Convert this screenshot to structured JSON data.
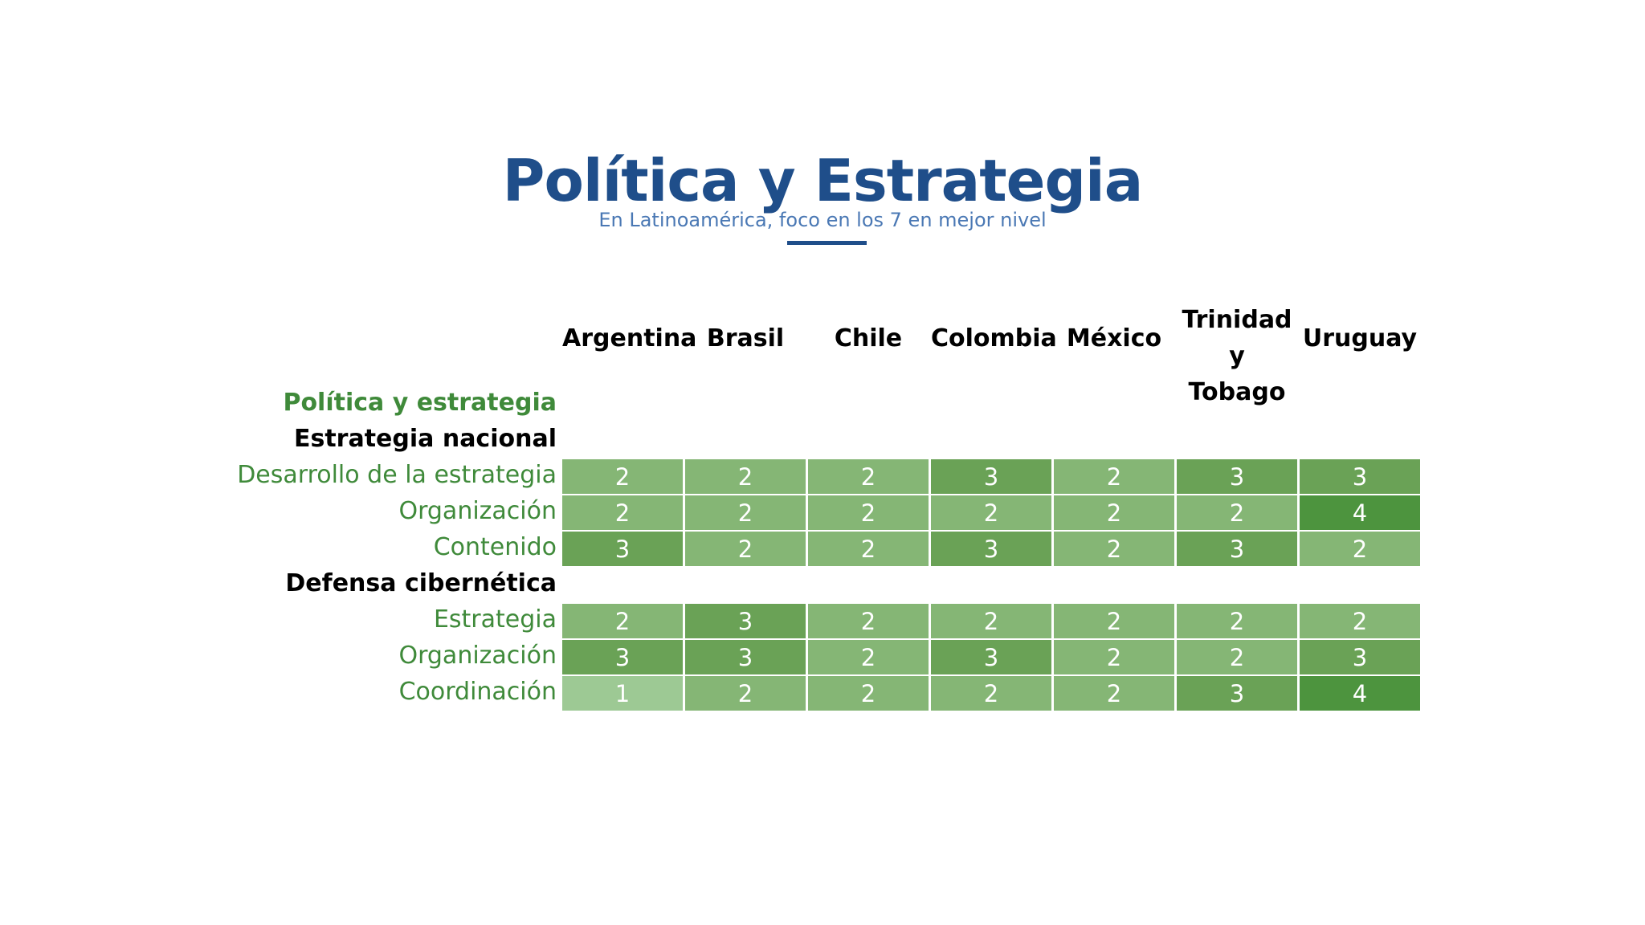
{
  "header": {
    "title": "Política y Estrategia",
    "subtitle": "En Latinoamérica, foco en los 7 en mejor nivel"
  },
  "colors": {
    "title": "#1f4e8a",
    "subtitle": "#4a78b4",
    "section_label": "#3f8a3a",
    "level_1": "#9dc994",
    "level_2": "#85b675",
    "level_3": "#6aa256",
    "level_4": "#4d943e"
  },
  "chart_data": {
    "type": "heatmap",
    "title": "Política y Estrategia",
    "subtitle": "En Latinoamérica, foco en los 7 en mejor nivel",
    "columns": [
      {
        "line1": "Argentina",
        "line2": ""
      },
      {
        "line1": "Brasil",
        "line2": ""
      },
      {
        "line1": "Chile",
        "line2": ""
      },
      {
        "line1": "Colombia",
        "line2": ""
      },
      {
        "line1": "México",
        "line2": ""
      },
      {
        "line1": "Trinidad",
        "line2": "y Tobago"
      },
      {
        "line1": "Uruguay",
        "line2": ""
      }
    ],
    "section": "Política y estrategia",
    "groups": [
      {
        "name": "Estrategia nacional",
        "rows": [
          {
            "label": "Desarrollo de la estrategia",
            "values": [
              2,
              2,
              2,
              3,
              2,
              3,
              3
            ]
          },
          {
            "label": "Organización",
            "values": [
              2,
              2,
              2,
              2,
              2,
              2,
              4
            ]
          },
          {
            "label": "Contenido",
            "values": [
              3,
              2,
              2,
              3,
              2,
              3,
              2
            ]
          }
        ]
      },
      {
        "name": "Defensa cibernética",
        "rows": [
          {
            "label": "Estrategia",
            "values": [
              2,
              3,
              2,
              2,
              2,
              2,
              2
            ]
          },
          {
            "label": "Organización",
            "values": [
              3,
              3,
              2,
              3,
              2,
              2,
              3
            ]
          },
          {
            "label": "Coordinación",
            "values": [
              1,
              2,
              2,
              2,
              2,
              3,
              4
            ]
          }
        ]
      }
    ]
  }
}
